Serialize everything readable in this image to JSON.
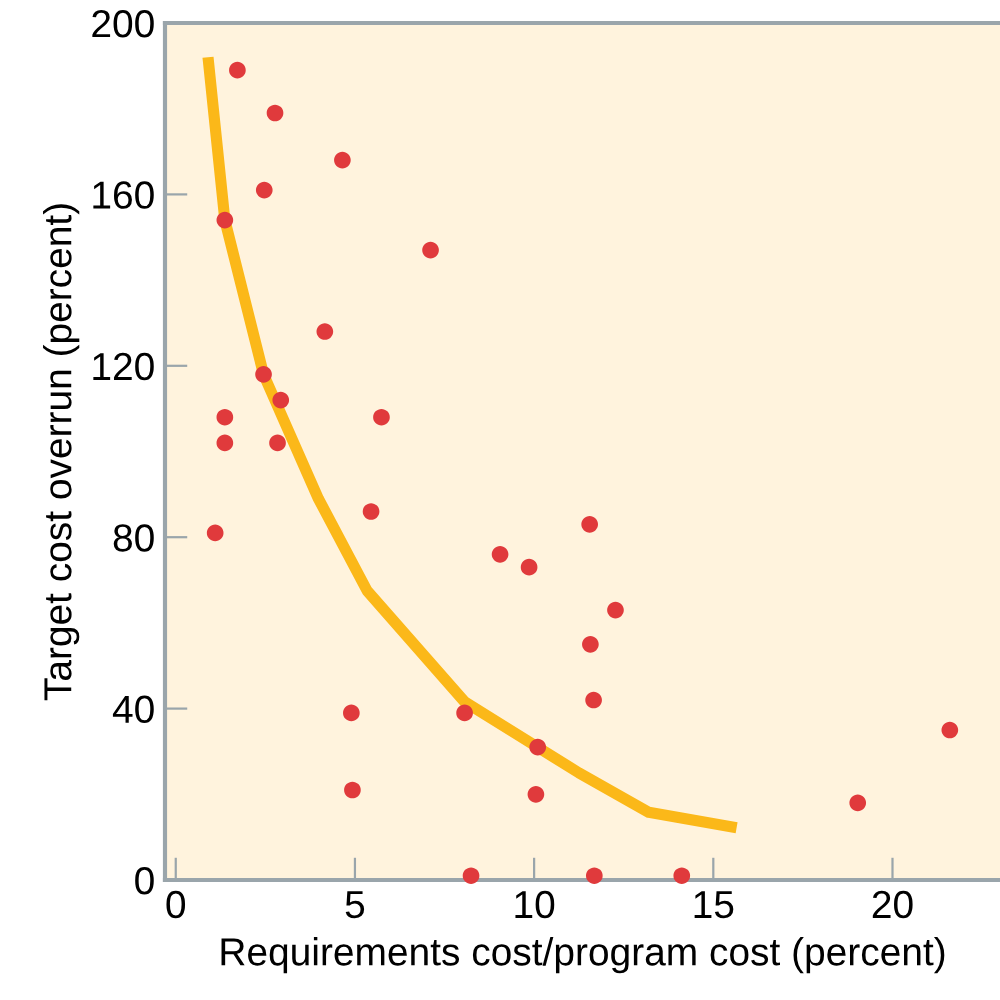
{
  "chart_data": {
    "type": "scatter",
    "xlabel": "Requirements cost/program cost (percent)",
    "ylabel": "Target cost overrun (percent)",
    "xlim": [
      -0.3,
      23
    ],
    "ylim": [
      0,
      200
    ],
    "xticks": [
      0,
      5,
      10,
      15,
      20
    ],
    "yticks": [
      0,
      40,
      80,
      120,
      160,
      200
    ],
    "grid": false,
    "series": [
      {
        "marker": "circle",
        "color": "#e03a3c",
        "x": [
          1.72,
          2.77,
          4.65,
          2.47,
          1.37,
          7.11,
          4.16,
          2.45,
          2.93,
          1.37,
          5.74,
          1.37,
          2.84,
          1.1,
          5.45,
          9.05,
          9.86,
          4.9,
          8.06,
          10.1,
          4.93,
          10.05,
          8.24,
          11.55,
          12.27,
          11.57,
          11.66,
          21.6,
          19.03,
          11.68,
          14.12
        ],
        "values": [
          189,
          179,
          168,
          161,
          154,
          147,
          128,
          118,
          112,
          108,
          108,
          102,
          102,
          81,
          86,
          76,
          73,
          39,
          39,
          31,
          21,
          20,
          1,
          83,
          63,
          55,
          42,
          35,
          18,
          1,
          1
        ]
      },
      {
        "type": "line",
        "color": "#fbb819",
        "marker": "none",
        "line_style": "solid",
        "x": [
          0.9,
          1.37,
          2.45,
          3.98,
          5.34,
          8.06,
          11.25,
          13.2,
          15.65
        ],
        "values": [
          192,
          154,
          118,
          89,
          67.5,
          41.6,
          25,
          15.8,
          12.2
        ]
      }
    ]
  }
}
